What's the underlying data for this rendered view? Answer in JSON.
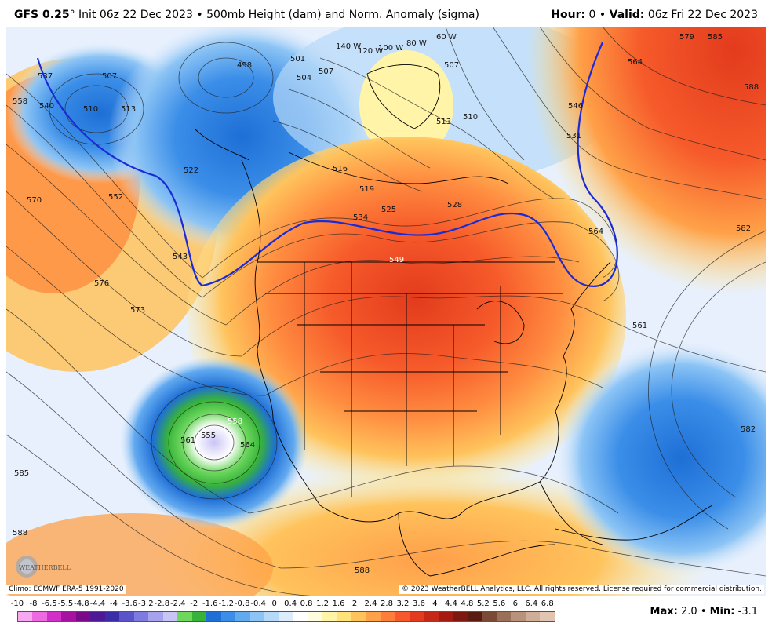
{
  "header": {
    "model": "GFS 0.25",
    "degree": "°",
    "init_text": "Init 06z 22 Dec 2023",
    "bullet": "•",
    "product": "500mb Height (dam) and Norm. Anomaly (sigma)",
    "hour_label": "Hour:",
    "hour_value": "0",
    "valid_label": "Valid:",
    "valid_value": "06z Fri 22 Dec 2023"
  },
  "footer": {
    "climo": "Climo: ECMWF ERA-5 1991-2020",
    "copyright": "© 2023 WeatherBELL Analytics, LLC. All rights reserved. License required for commercial distribution.",
    "max_label": "Max:",
    "max_value": "2.0",
    "min_label": "Min:",
    "min_value": "-3.1",
    "logo_text": "WEATHERBELL"
  },
  "legend": {
    "ticks": [
      "-10",
      "-8",
      "-6.5",
      "-5.5",
      "-4.8",
      "-4.4",
      "-4",
      "-3.6",
      "-3.2",
      "-2.8",
      "-2.4",
      "-2",
      "-1.6",
      "-1.2",
      "-0.8",
      "-0.4",
      "0",
      "0.4",
      "0.8",
      "1.2",
      "1.6",
      "2",
      "2.4",
      "2.8",
      "3.2",
      "3.6",
      "4",
      "4.4",
      "4.8",
      "5.2",
      "5.6",
      "6",
      "6.4",
      "6.8"
    ],
    "colors": [
      "#f7a8f0",
      "#ee6ae0",
      "#d22fc8",
      "#a6119f",
      "#7a0a88",
      "#4f1896",
      "#3b2ca8",
      "#5a54c8",
      "#7d7ae0",
      "#a6a2ee",
      "#c9c4f6",
      "#6dd75e",
      "#37b33a",
      "#1e6fd6",
      "#3b8ee8",
      "#62aaf0",
      "#8cc4f5",
      "#b6d9f8",
      "#dcecfb",
      "#ffffff",
      "#fffce0",
      "#fff4a8",
      "#ffe27a",
      "#ffc35c",
      "#ffa148",
      "#ff7d3a",
      "#f65a2a",
      "#e23b1d",
      "#c42817",
      "#a51b12",
      "#7d1a10",
      "#5a1b12",
      "#7a4a36",
      "#9a7058",
      "#b8927a",
      "#cfae98",
      "#e2c4b2"
    ]
  },
  "map": {
    "height_labels": [
      "537",
      "540",
      "558",
      "570",
      "552",
      "576",
      "573",
      "510",
      "507",
      "513",
      "522",
      "543",
      "501",
      "504",
      "507",
      "498",
      "140 W",
      "120 W",
      "100 W",
      "80 W",
      "60 W",
      "507",
      "510",
      "513",
      "516",
      "519",
      "525",
      "528",
      "534",
      "549",
      "546",
      "531",
      "564",
      "579",
      "585",
      "588",
      "582",
      "561",
      "564",
      "582",
      "585",
      "588",
      "588",
      "555",
      "561",
      "558",
      "564"
    ],
    "colors": {
      "contour": "#222222",
      "anomaly_line": "#1a2bd6",
      "land_outline": "#000000"
    }
  }
}
